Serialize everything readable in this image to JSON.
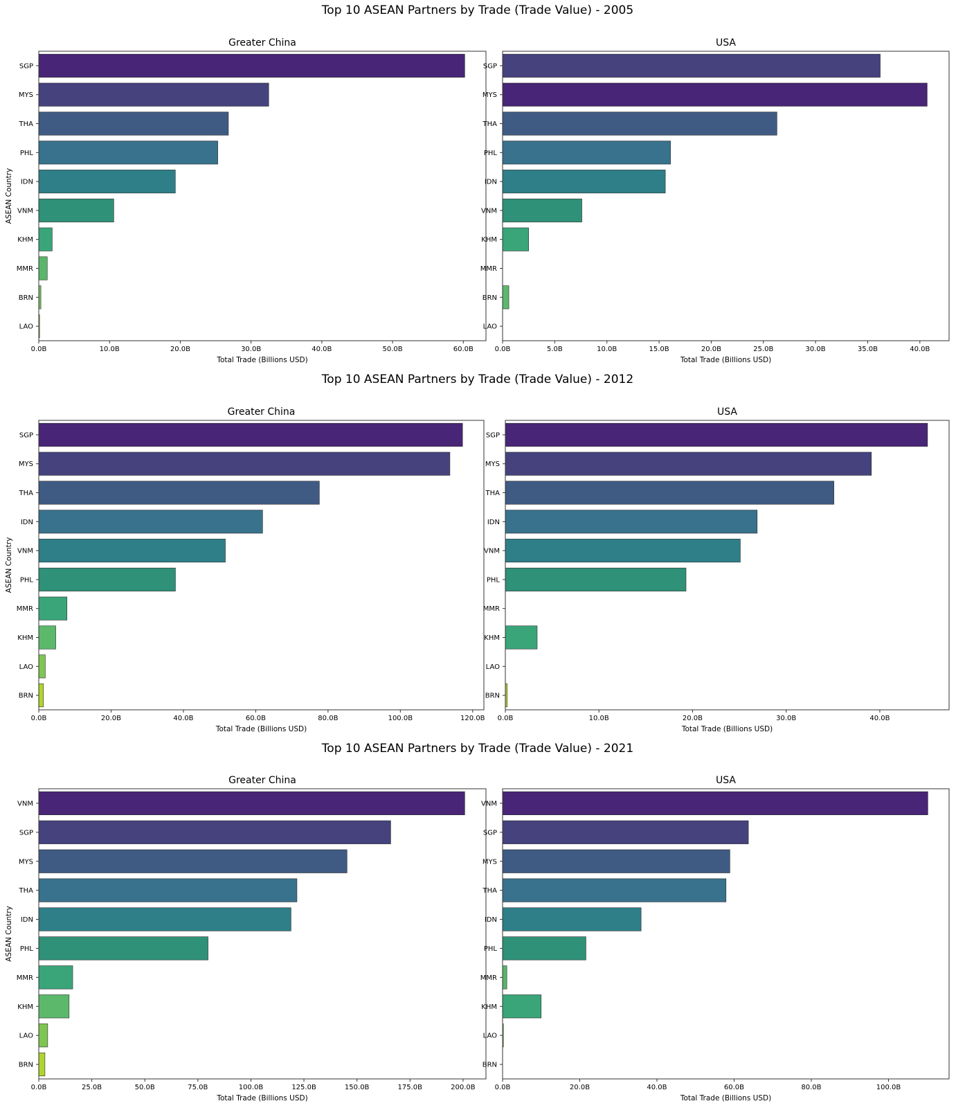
{
  "figure": {
    "titles": [
      "Top 10 ASEAN Partners by Trade (Trade Value) - 2005",
      "Top 10 ASEAN Partners by Trade (Trade Value) - 2012",
      "Top 10 ASEAN Partners by Trade (Trade Value) - 2021"
    ]
  },
  "chart_data": [
    {
      "type": "bar",
      "orientation": "horizontal",
      "year": "2005",
      "title": "Greater China",
      "xlabel": "Total Trade (Billions USD)",
      "ylabel": "ASEAN Country",
      "categories": [
        "SGP",
        "MYS",
        "THA",
        "PHL",
        "IDN",
        "VNM",
        "KHM",
        "MMR",
        "BRN",
        "LAO"
      ],
      "values": [
        60.2,
        32.5,
        26.8,
        25.3,
        19.3,
        10.6,
        1.9,
        1.2,
        0.3,
        0.1
      ],
      "xlim": [
        0,
        63.2
      ],
      "xticks": [
        0,
        10,
        20,
        30,
        40,
        50,
        60
      ],
      "xticklabels": [
        "0.0B",
        "10.0B",
        "20.0B",
        "30.0B",
        "40.0B",
        "50.0B",
        "60.0B"
      ],
      "colors": [
        "#482576",
        "#46427e",
        "#3f5b84",
        "#38728c",
        "#2e7f88",
        "#2f9178",
        "#3aa579",
        "#59b66c",
        "#77c25d",
        "#99cd46"
      ]
    },
    {
      "type": "bar",
      "orientation": "horizontal",
      "year": "2005",
      "title": "USA",
      "xlabel": "Total Trade (Billions USD)",
      "ylabel": "",
      "categories": [
        "SGP",
        "MYS",
        "THA",
        "PHL",
        "IDN",
        "VNM",
        "KHM",
        "MMR",
        "BRN",
        "LAO"
      ],
      "values": [
        36.2,
        40.7,
        26.3,
        16.1,
        15.6,
        7.6,
        2.5,
        0,
        0.6,
        0
      ],
      "xlim": [
        0,
        42.8
      ],
      "xticks": [
        0,
        5,
        10,
        15,
        20,
        25,
        30,
        35,
        40
      ],
      "xticklabels": [
        "0.0B",
        "5.0B",
        "10.0B",
        "15.0B",
        "20.0B",
        "25.0B",
        "30.0B",
        "35.0B",
        "40.0B"
      ],
      "colors": [
        "#46427e",
        "#482576",
        "#3f5b84",
        "#38728c",
        "#2e7f88",
        "#2f9178",
        "#3aa579",
        "#59b66c",
        "#5cb96c",
        "#99cd46"
      ]
    },
    {
      "type": "bar",
      "orientation": "horizontal",
      "year": "2012",
      "title": "Greater China",
      "xlabel": "Total Trade (Billions USD)",
      "ylabel": "ASEAN Country",
      "categories": [
        "SGP",
        "MYS",
        "THA",
        "IDN",
        "VNM",
        "PHL",
        "MMR",
        "KHM",
        "LAO",
        "BRN"
      ],
      "values": [
        117.2,
        113.7,
        77.6,
        61.9,
        51.6,
        37.8,
        7.8,
        4.7,
        1.8,
        1.3
      ],
      "xlim": [
        0,
        123.1
      ],
      "xticks": [
        0,
        20,
        40,
        60,
        80,
        100,
        120
      ],
      "xticklabels": [
        "0.0B",
        "20.0B",
        "40.0B",
        "60.0B",
        "80.0B",
        "100.0B",
        "120.0B"
      ],
      "colors": [
        "#482576",
        "#46427e",
        "#3f5b84",
        "#38728c",
        "#2e7f88",
        "#2f9178",
        "#3aa579",
        "#5cb96c",
        "#7ec552",
        "#b0d430"
      ]
    },
    {
      "type": "bar",
      "orientation": "horizontal",
      "year": "2012",
      "title": "USA",
      "xlabel": "Total Trade (Billions USD)",
      "ylabel": "",
      "categories": [
        "SGP",
        "MYS",
        "THA",
        "IDN",
        "VNM",
        "PHL",
        "MMR",
        "KHM",
        "LAO",
        "BRN"
      ],
      "values": [
        45.1,
        39.1,
        35.1,
        26.9,
        25.1,
        19.3,
        0,
        3.4,
        0,
        0.2
      ],
      "xlim": [
        0,
        47.4
      ],
      "xticks": [
        0,
        10,
        20,
        30,
        40
      ],
      "xticklabels": [
        "0.0B",
        "10.0B",
        "20.0B",
        "30.0B",
        "40.0B"
      ],
      "colors": [
        "#482576",
        "#46427e",
        "#3f5b84",
        "#38728c",
        "#2e7f88",
        "#2f9178",
        "#3aa579",
        "#3aa579",
        "#7ec552",
        "#b0d430"
      ]
    },
    {
      "type": "bar",
      "orientation": "horizontal",
      "year": "2021",
      "title": "Greater China",
      "xlabel": "Total Trade (Billions USD)",
      "ylabel": "ASEAN Country",
      "categories": [
        "VNM",
        "SGP",
        "MYS",
        "THA",
        "IDN",
        "PHL",
        "MMR",
        "KHM",
        "LAO",
        "BRN"
      ],
      "values": [
        200.8,
        165.9,
        145.3,
        121.7,
        118.9,
        79.8,
        16.0,
        14.3,
        4.2,
        2.9
      ],
      "xlim": [
        0,
        210.8
      ],
      "xticks": [
        0,
        25,
        50,
        75,
        100,
        125,
        150,
        175,
        200
      ],
      "xticklabels": [
        "0.0B",
        "25.0B",
        "50.0B",
        "75.0B",
        "100.0B",
        "125.0B",
        "150.0B",
        "175.0B",
        "200.0B"
      ],
      "colors": [
        "#482576",
        "#46427e",
        "#3f5b84",
        "#38728c",
        "#2e7f88",
        "#2f9178",
        "#3aa579",
        "#5cb96c",
        "#7ec552",
        "#b0d430"
      ]
    },
    {
      "type": "bar",
      "orientation": "horizontal",
      "year": "2021",
      "title": "USA",
      "xlabel": "Total Trade (Billions USD)",
      "ylabel": "",
      "categories": [
        "VNM",
        "SGP",
        "MYS",
        "THA",
        "IDN",
        "PHL",
        "MMR",
        "KHM",
        "LAO",
        "BRN"
      ],
      "values": [
        110.2,
        63.7,
        58.9,
        57.9,
        35.9,
        21.6,
        1.1,
        10.0,
        0.2,
        0
      ],
      "xlim": [
        0,
        115.7
      ],
      "xticks": [
        0,
        20,
        40,
        60,
        80,
        100
      ],
      "xticklabels": [
        "0.0B",
        "20.0B",
        "40.0B",
        "60.0B",
        "80.0B",
        "100.0B"
      ],
      "colors": [
        "#482576",
        "#46427e",
        "#3f5b84",
        "#38728c",
        "#2e7f88",
        "#2f9178",
        "#59b66c",
        "#3aa579",
        "#7ec552",
        "#b0d430"
      ]
    }
  ]
}
